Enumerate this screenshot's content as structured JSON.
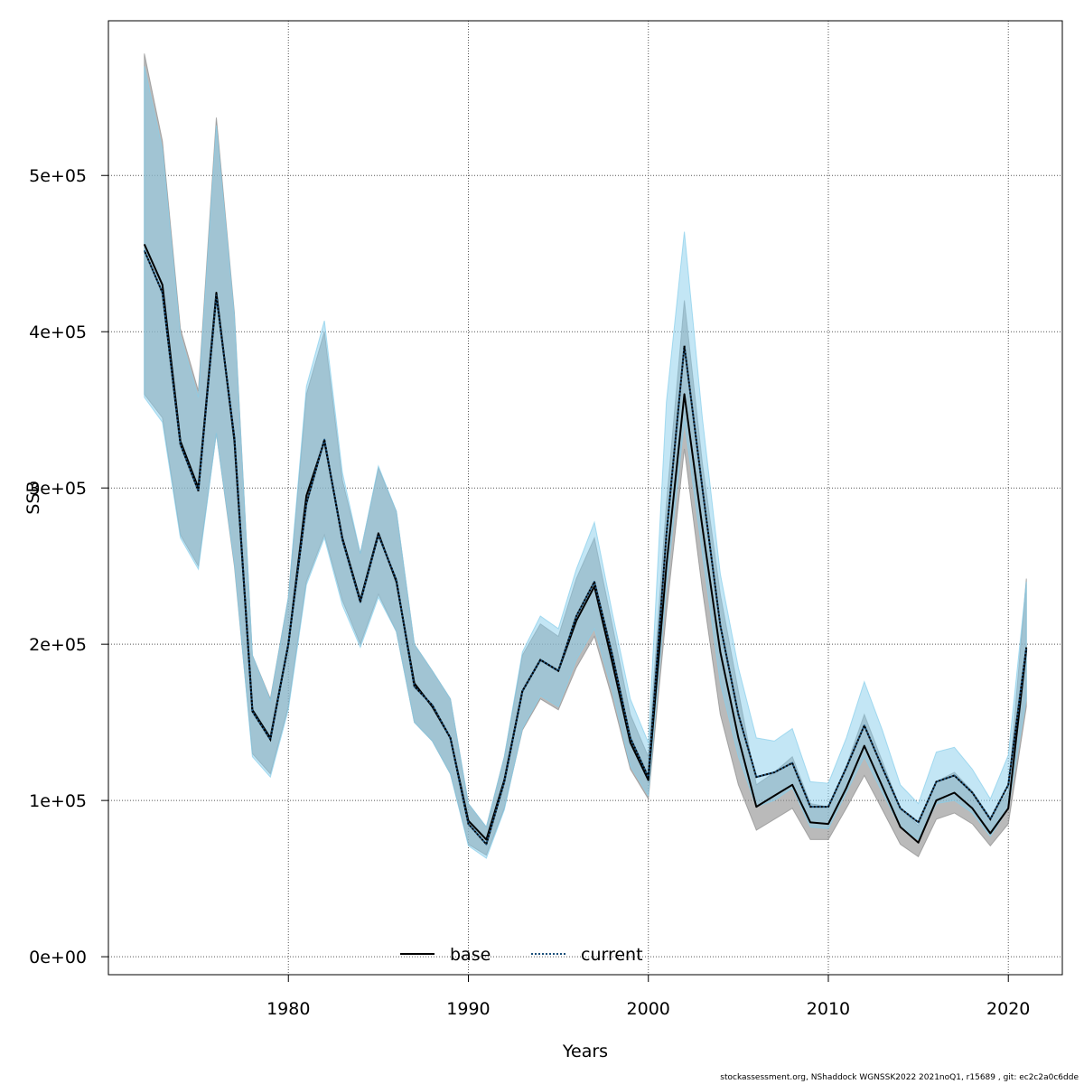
{
  "chart_data": {
    "type": "line",
    "title": "",
    "xlabel": "Years",
    "ylabel": "SSB",
    "xlim": [
      1970,
      2023
    ],
    "ylim": [
      -11500,
      599000
    ],
    "x_ticks": [
      1980,
      1990,
      2000,
      2010,
      2020
    ],
    "y_ticks": [
      0,
      100000,
      200000,
      300000,
      400000,
      500000
    ],
    "x_tick_labels": [
      "1980",
      "1990",
      "2000",
      "2010",
      "2020"
    ],
    "y_tick_labels": [
      "0e+00",
      "1e+05",
      "2e+05",
      "3e+05",
      "4e+05",
      "5e+05"
    ],
    "grid": true,
    "legend_placement": "bottom-center",
    "colors": {
      "base_line": "#000000",
      "current_line": "#1a4f7a",
      "base_band": "#8c8c8c",
      "current_band": "#87ceeb",
      "grid": "#555555"
    },
    "x": [
      1972,
      1973,
      1974,
      1975,
      1976,
      1977,
      1978,
      1979,
      1980,
      1981,
      1982,
      1983,
      1984,
      1985,
      1986,
      1987,
      1988,
      1989,
      1990,
      1991,
      1992,
      1993,
      1994,
      1995,
      1996,
      1997,
      1998,
      1999,
      2000,
      2001,
      2002,
      2003,
      2004,
      2005,
      2006,
      2007,
      2008,
      2009,
      2010,
      2011,
      2012,
      2013,
      2014,
      2015,
      2016,
      2017,
      2018,
      2019,
      2020,
      2021
    ],
    "series": [
      {
        "name": "base",
        "style": "solid",
        "values": [
          456000,
          430000,
          330000,
          300000,
          425000,
          330000,
          158000,
          140000,
          200000,
          295000,
          330000,
          268000,
          228000,
          271000,
          240000,
          175000,
          160000,
          140000,
          87000,
          75000,
          113000,
          170000,
          190000,
          183000,
          215000,
          237000,
          188000,
          137000,
          113000,
          250000,
          360000,
          275000,
          195000,
          140000,
          96000,
          103000,
          110000,
          86000,
          85000,
          108000,
          135000,
          109000,
          83000,
          73000,
          100000,
          105000,
          95000,
          79000,
          95000,
          197000
        ],
        "lower": [
          360000,
          345000,
          270000,
          250000,
          335000,
          250000,
          130000,
          117000,
          160000,
          240000,
          270000,
          228000,
          200000,
          232000,
          208000,
          150000,
          138000,
          117000,
          72000,
          65000,
          95000,
          145000,
          165000,
          158000,
          185000,
          205000,
          165000,
          120000,
          101000,
          220000,
          325000,
          235000,
          155000,
          110000,
          81000,
          88000,
          95000,
          75000,
          75000,
          95000,
          116000,
          94000,
          72000,
          64000,
          88000,
          92000,
          85000,
          71000,
          85000,
          160000
        ],
        "upper": [
          578000,
          522000,
          402000,
          362000,
          537000,
          412000,
          193000,
          165000,
          230000,
          360000,
          400000,
          305000,
          258000,
          313000,
          285000,
          200000,
          183000,
          165000,
          98000,
          83000,
          128000,
          193000,
          213000,
          205000,
          242000,
          268000,
          212000,
          155000,
          128000,
          290000,
          420000,
          316000,
          232000,
          170000,
          110000,
          118000,
          128000,
          98000,
          96000,
          122000,
          155000,
          125000,
          95000,
          84000,
          112000,
          118000,
          106000,
          89000,
          106000,
          242000
        ]
      },
      {
        "name": "current",
        "style": "dotted",
        "values": [
          452000,
          425000,
          328000,
          298000,
          423000,
          332000,
          157000,
          139000,
          200000,
          290000,
          331000,
          267000,
          227000,
          270000,
          241000,
          173000,
          161000,
          140000,
          85000,
          72000,
          112000,
          170000,
          190000,
          183000,
          218000,
          240000,
          193000,
          140000,
          115000,
          270000,
          391000,
          300000,
          212000,
          155000,
          115000,
          118000,
          124000,
          96000,
          96000,
          121000,
          148000,
          121000,
          95000,
          86000,
          112000,
          116000,
          105000,
          88000,
          110000,
          198000
        ],
        "lower": [
          358000,
          342000,
          268000,
          248000,
          335000,
          252000,
          128000,
          115000,
          158000,
          238000,
          268000,
          225000,
          198000,
          230000,
          208000,
          150000,
          138000,
          117000,
          71000,
          63000,
          94000,
          146000,
          167000,
          160000,
          190000,
          210000,
          170000,
          122000,
          103000,
          236000,
          343000,
          258000,
          175000,
          128000,
          96000,
          100000,
          108000,
          83000,
          82000,
          105000,
          128000,
          105000,
          83000,
          75000,
          98000,
          100000,
          92000,
          77000,
          95000,
          165000
        ],
        "upper": [
          570000,
          517000,
          398000,
          358000,
          532000,
          410000,
          193000,
          164000,
          230000,
          365000,
          407000,
          310000,
          258000,
          314000,
          285000,
          200000,
          183000,
          165000,
          98000,
          83000,
          128000,
          195000,
          218000,
          210000,
          248000,
          278000,
          220000,
          165000,
          137000,
          355000,
          464000,
          345000,
          245000,
          185000,
          140000,
          138000,
          146000,
          112000,
          111000,
          140000,
          176000,
          145000,
          110000,
          98000,
          131000,
          134000,
          120000,
          101000,
          129000,
          240000
        ]
      }
    ]
  },
  "footer": "stockassessment.org, NShaddock  WGNSSK2022  2021noQ1, r15689 , git: ec2c2a0c6dde"
}
